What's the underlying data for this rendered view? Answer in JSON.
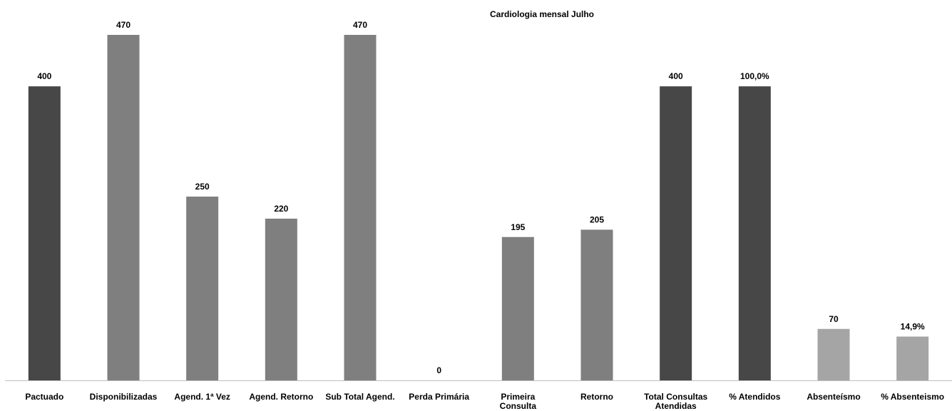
{
  "chart_data": {
    "type": "bar",
    "title": "Cardiologia mensal  Julho",
    "categories": [
      "Pactuado",
      "Disponibilizadas",
      "Agend. 1ª Vez",
      "Agend. Retorno",
      "Sub Total Agend.",
      "Perda Primária",
      "Primeira Consulta",
      "Retorno",
      "Total Consultas Atendidas",
      "% Atendidos",
      "Absenteísmo",
      "% Absenteismo"
    ],
    "colors": [
      "#474747",
      "#7f7f7f",
      "#7f7f7f",
      "#7f7f7f",
      "#7f7f7f",
      "#7f7f7f",
      "#7f7f7f",
      "#7f7f7f",
      "#474747",
      "#474747",
      "#a5a5a5",
      "#a5a5a5"
    ],
    "series": [
      {
        "values": [
          400,
          470,
          250,
          220,
          470,
          0,
          195,
          205,
          400,
          null,
          70,
          null
        ]
      },
      {
        "axis": "y2",
        "values": [
          null,
          null,
          null,
          null,
          null,
          null,
          null,
          null,
          null,
          100.0,
          null,
          14.9
        ],
        "value_labels": [
          null,
          null,
          null,
          null,
          null,
          null,
          null,
          null,
          null,
          "100,0%",
          null,
          "14,9%"
        ]
      }
    ],
    "ylim": [
      0,
      500
    ],
    "y2lim": [
      0,
      125
    ]
  }
}
